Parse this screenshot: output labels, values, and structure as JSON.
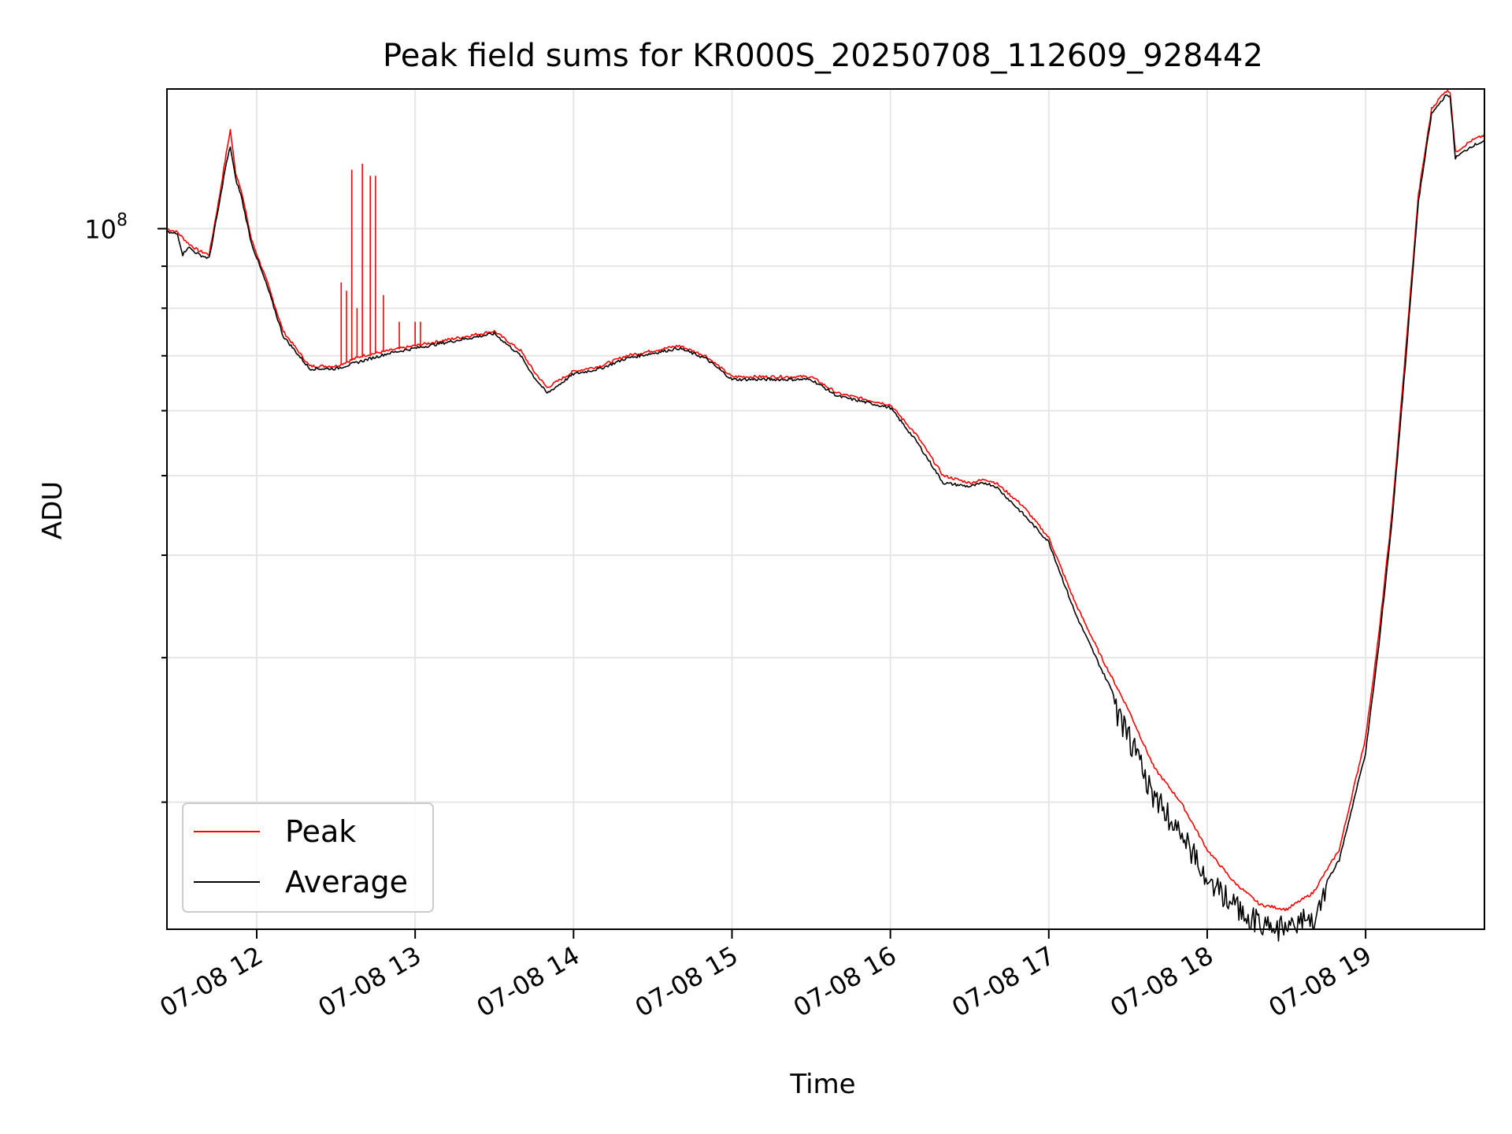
{
  "chart_data": {
    "type": "line",
    "title": "Peak field sums for KR000S_20250708_112609_928442",
    "xlabel": "Time",
    "ylabel": "ADU",
    "yscale": "log",
    "grid": true,
    "legend_position": "lower-left",
    "x_tick_labels": [
      "07-08 12",
      "07-08 13",
      "07-08 14",
      "07-08 15",
      "07-08 16",
      "07-08 17",
      "07-08 18",
      "07-08 19"
    ],
    "y_tick_labels": [
      {
        "base": "10",
        "exp": "8"
      }
    ],
    "xlim": [
      "2025-07-08 11:26",
      "2025-07-08 19:45"
    ],
    "ylim": [
      14000000,
      148000000
    ],
    "series": [
      {
        "name": "Peak",
        "color": "#ff0000",
        "x": [
          "11:26",
          "11:30",
          "11:34",
          "11:38",
          "11:42",
          "11:46",
          "11:48",
          "11:50",
          "11:52",
          "11:54",
          "11:58",
          "12:04",
          "12:10",
          "12:20",
          "12:30",
          "12:40",
          "12:50",
          "13:00",
          "13:10",
          "13:20",
          "13:30",
          "13:40",
          "13:45",
          "13:50",
          "14:00",
          "14:10",
          "14:20",
          "14:30",
          "14:40",
          "14:50",
          "15:00",
          "15:05",
          "15:15",
          "15:20",
          "15:30",
          "15:40",
          "15:50",
          "16:00",
          "16:10",
          "16:20",
          "16:30",
          "16:36",
          "16:40",
          "16:50",
          "17:00",
          "17:10",
          "17:20",
          "17:30",
          "17:40",
          "17:50",
          "18:00",
          "18:10",
          "18:20",
          "18:30",
          "18:40",
          "18:50",
          "19:00",
          "19:05",
          "19:10",
          "19:15",
          "19:20",
          "19:25",
          "19:30",
          "19:32",
          "19:34",
          "19:40",
          "19:45"
        ],
        "values": [
          100000000,
          99000000,
          96000000,
          94000000,
          93000000,
          110000000,
          121000000,
          132000000,
          117000000,
          112000000,
          97000000,
          86000000,
          75000000,
          68000000,
          68000000,
          70000000,
          71000000,
          72000000,
          73000000,
          74000000,
          75000000,
          71000000,
          67000000,
          64000000,
          67000000,
          68000000,
          70000000,
          71000000,
          72000000,
          70000000,
          66000000,
          66000000,
          66000000,
          66000000,
          66000000,
          63000000,
          62000000,
          61000000,
          56000000,
          50000000,
          49000000,
          49500000,
          49000000,
          46000000,
          42000000,
          35000000,
          30000000,
          26000000,
          22000000,
          20000000,
          17500000,
          16000000,
          15000000,
          14800000,
          15500000,
          17500000,
          24000000,
          32000000,
          45000000,
          70000000,
          110000000,
          140000000,
          147000000,
          147000000,
          124000000,
          128000000,
          130000000
        ],
        "spikes": [
          {
            "x": "12:36",
            "value": 118000000
          },
          {
            "x": "12:40",
            "value": 120000000
          },
          {
            "x": "12:43",
            "value": 116000000
          },
          {
            "x": "12:45",
            "value": 116000000
          },
          {
            "x": "12:32",
            "value": 86000000
          },
          {
            "x": "12:34",
            "value": 84000000
          },
          {
            "x": "12:38",
            "value": 80000000
          },
          {
            "x": "12:48",
            "value": 83000000
          },
          {
            "x": "12:54",
            "value": 77000000
          },
          {
            "x": "13:00",
            "value": 77000000
          },
          {
            "x": "13:02",
            "value": 77000000
          }
        ]
      },
      {
        "name": "Average",
        "color": "#000000",
        "x": [
          "11:26",
          "11:30",
          "11:32",
          "11:34",
          "11:38",
          "11:42",
          "11:46",
          "11:48",
          "11:50",
          "11:52",
          "11:54",
          "11:58",
          "12:04",
          "12:10",
          "12:20",
          "12:30",
          "12:40",
          "12:50",
          "13:00",
          "13:10",
          "13:20",
          "13:30",
          "13:40",
          "13:45",
          "13:50",
          "14:00",
          "14:10",
          "14:20",
          "14:30",
          "14:40",
          "14:50",
          "15:00",
          "15:05",
          "15:15",
          "15:20",
          "15:30",
          "15:40",
          "15:50",
          "16:00",
          "16:10",
          "16:20",
          "16:30",
          "16:36",
          "16:40",
          "16:50",
          "17:00",
          "17:10",
          "17:20",
          "17:30",
          "17:40",
          "17:50",
          "18:00",
          "18:10",
          "18:20",
          "18:30",
          "18:40",
          "18:50",
          "19:00",
          "19:05",
          "19:10",
          "19:15",
          "19:20",
          "19:25",
          "19:30",
          "19:32",
          "19:34",
          "19:40",
          "19:45"
        ],
        "values": [
          99000000,
          98500000,
          93000000,
          95000000,
          93000000,
          92000000,
          108000000,
          118000000,
          126000000,
          115000000,
          110000000,
          96000000,
          85000000,
          74000000,
          67500000,
          67500000,
          69000000,
          70500000,
          71500000,
          72500000,
          73500000,
          74500000,
          70000000,
          66000000,
          63000000,
          66500000,
          67500000,
          69500000,
          70500000,
          71500000,
          69500000,
          65500000,
          65500000,
          65500000,
          65500000,
          65500000,
          62500000,
          61500000,
          60500000,
          55000000,
          49000000,
          48500000,
          49000000,
          48500000,
          45000000,
          41500000,
          34000000,
          29000000,
          25000000,
          21000000,
          19000000,
          16800000,
          15500000,
          14700000,
          14500000,
          15000000,
          17000000,
          23000000,
          31000000,
          44000000,
          68000000,
          108000000,
          138000000,
          145000000,
          145000000,
          122000000,
          126000000,
          128000000
        ],
        "noise_region": {
          "from": "17:25",
          "to": "18:45"
        }
      }
    ]
  }
}
